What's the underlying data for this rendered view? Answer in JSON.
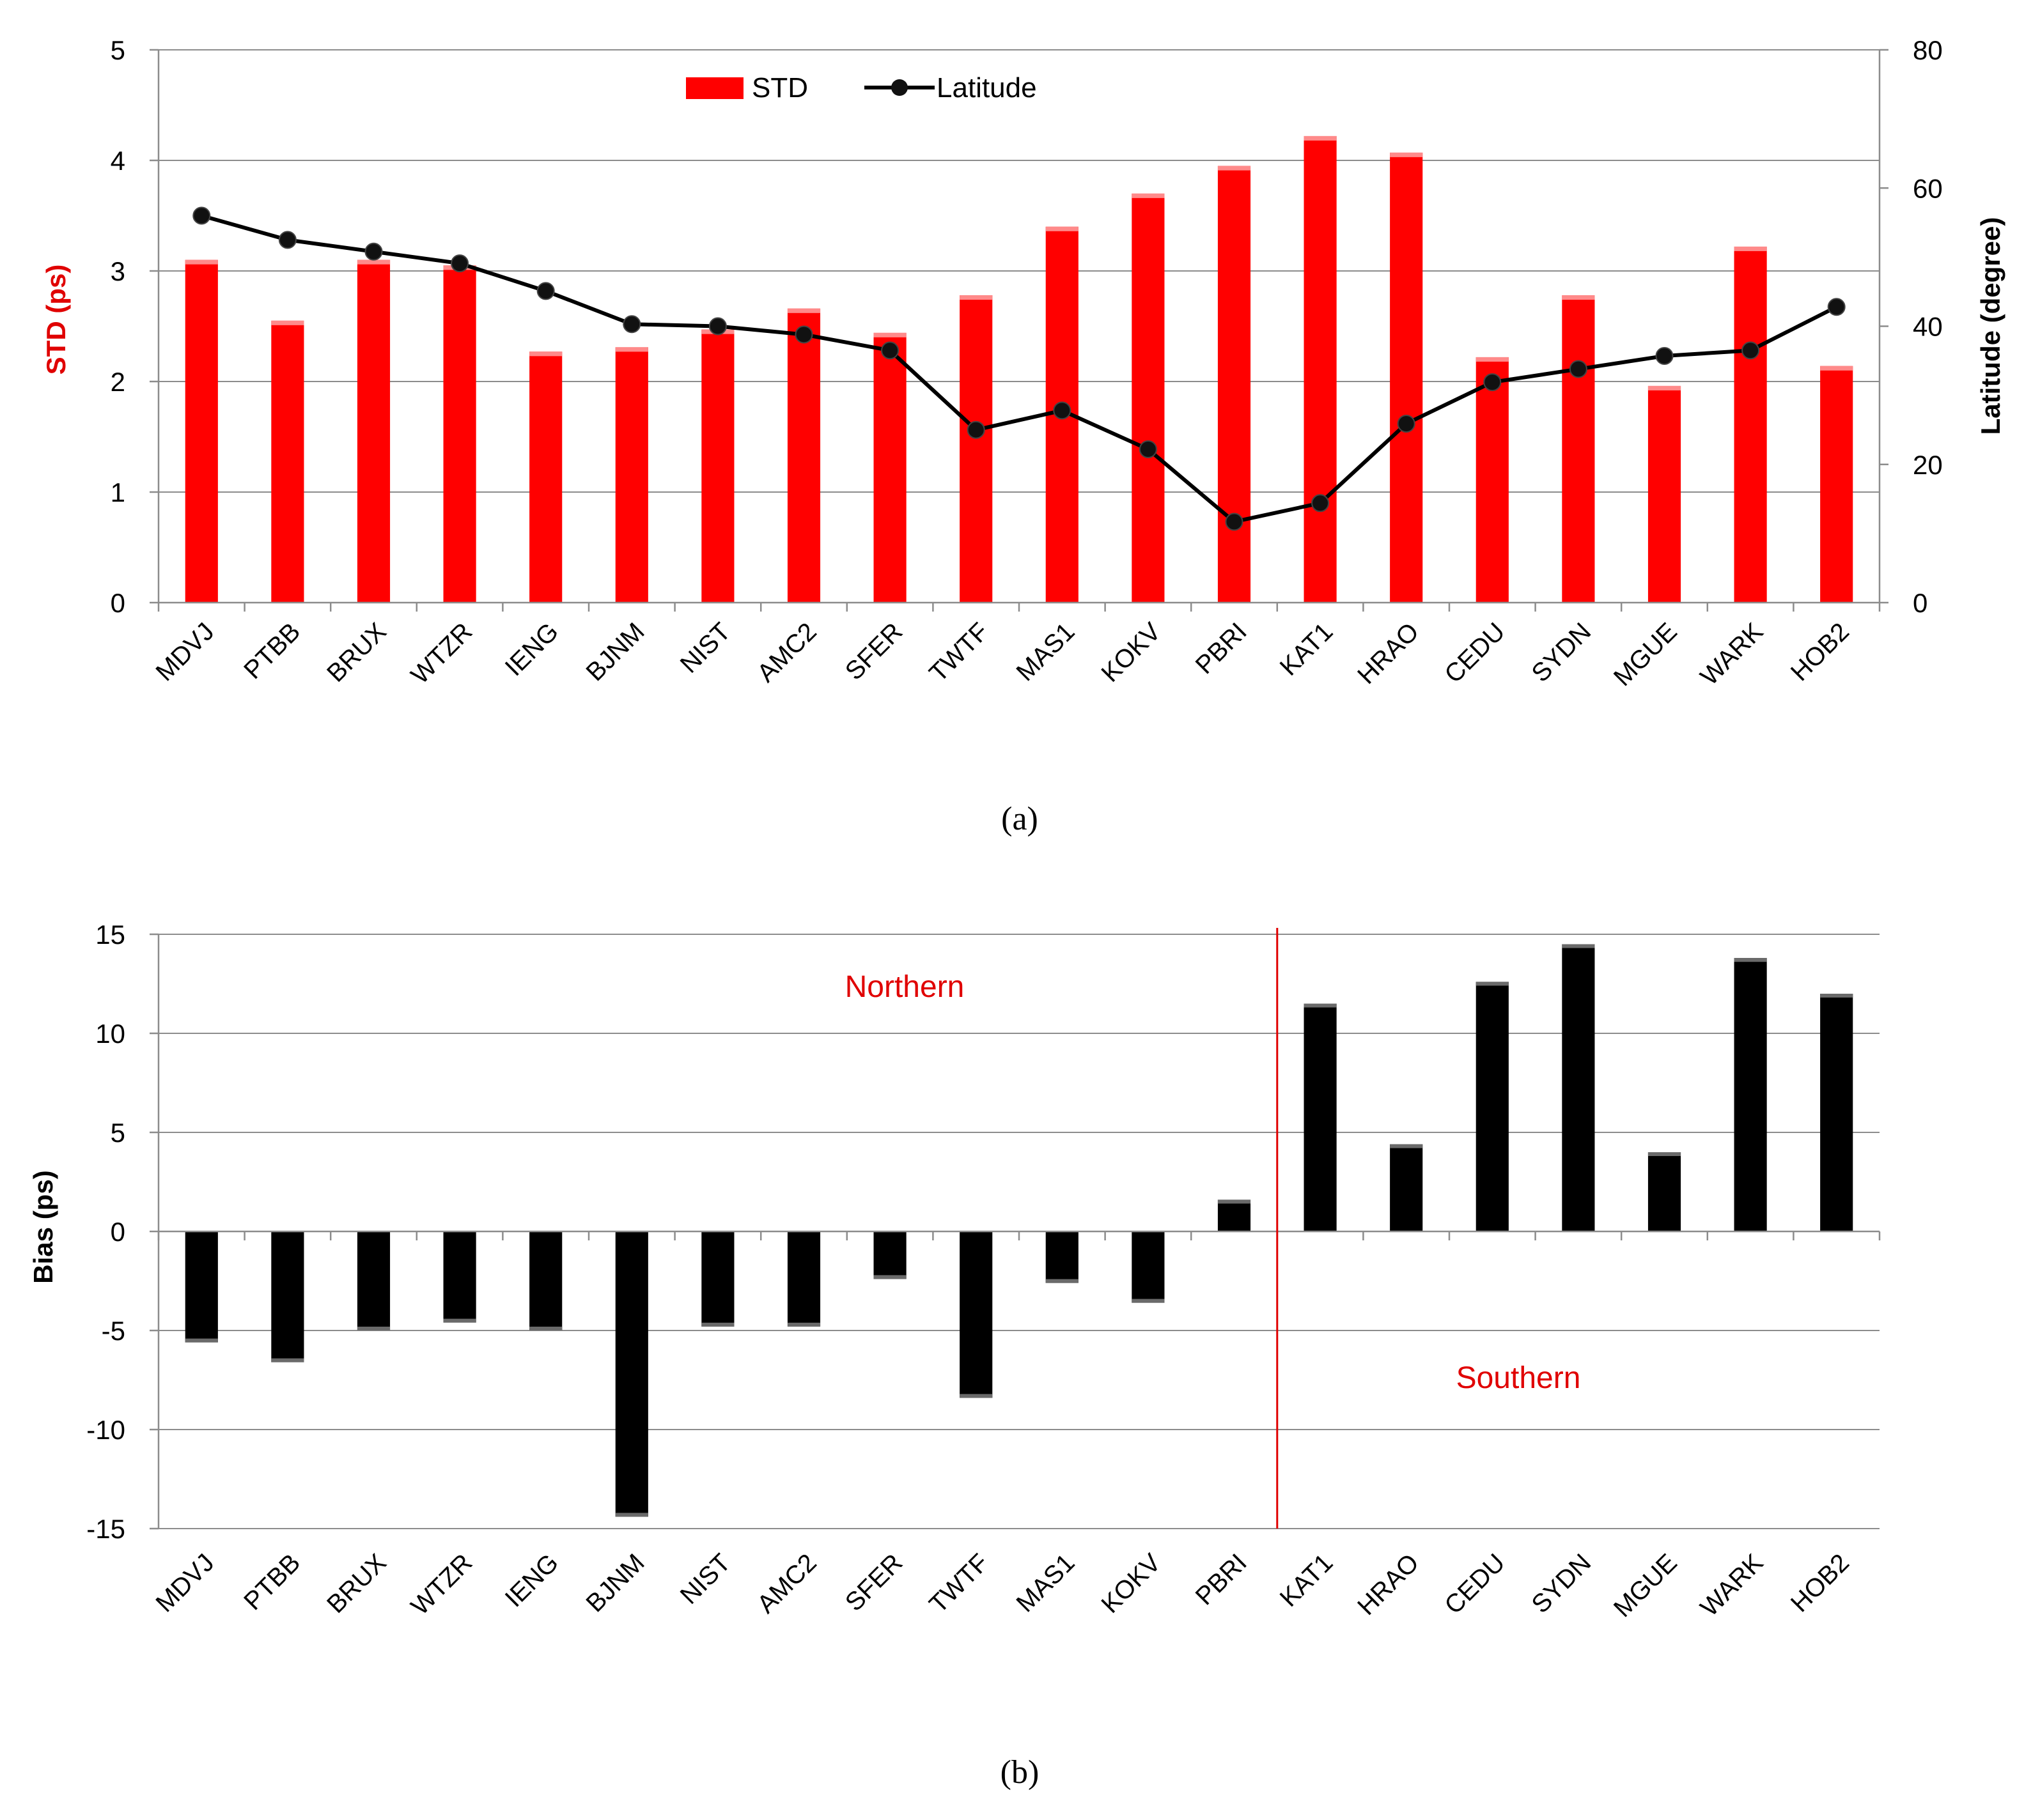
{
  "chart_data": [
    {
      "type": "bar",
      "panel_label": "(a)",
      "categories": [
        "MDVJ",
        "PTBB",
        "BRUX",
        "WTZR",
        "IENG",
        "BJNM",
        "NIST",
        "AMC2",
        "SFER",
        "TWTF",
        "MAS1",
        "KOKV",
        "PBRI",
        "KAT1",
        "HRAO",
        "CEDU",
        "SYDN",
        "MGUE",
        "WARK",
        "HOB2"
      ],
      "series": [
        {
          "name": "STD",
          "type": "bar",
          "axis": "left",
          "color": "#ff0000",
          "values": [
            3.1,
            2.55,
            3.1,
            3.05,
            2.27,
            2.31,
            2.47,
            2.66,
            2.44,
            2.78,
            3.4,
            3.7,
            3.95,
            4.22,
            4.07,
            2.22,
            2.78,
            1.96,
            3.22,
            2.14
          ]
        },
        {
          "name": "Latitude",
          "type": "line",
          "axis": "right",
          "color": "#000000",
          "values": [
            56,
            52.5,
            50.8,
            49.1,
            45.1,
            40.3,
            40.0,
            38.8,
            36.5,
            25.0,
            27.8,
            22.2,
            11.7,
            14.4,
            25.9,
            31.9,
            33.8,
            35.7,
            36.5,
            42.8
          ]
        }
      ],
      "ylabel_left": "STD  (ps)",
      "ylabel_right": "Latitude (degree)",
      "ylim_left": [
        0,
        5
      ],
      "ylim_right": [
        0,
        80
      ],
      "yticks_left": [
        0,
        1,
        2,
        3,
        4,
        5
      ],
      "yticks_right": [
        0,
        20,
        40,
        60,
        80
      ],
      "legend": "top-center",
      "grid": true,
      "colors": {
        "ylabel_left": "#e00000",
        "ylabel_right": "#000000"
      }
    },
    {
      "type": "bar",
      "panel_label": "(b)",
      "categories": [
        "MDVJ",
        "PTBB",
        "BRUX",
        "WTZR",
        "IENG",
        "BJNM",
        "NIST",
        "AMC2",
        "SFER",
        "TWTF",
        "MAS1",
        "KOKV",
        "PBRI",
        "KAT1",
        "HRAO",
        "CEDU",
        "SYDN",
        "MGUE",
        "WARK",
        "HOB2"
      ],
      "series": [
        {
          "name": "Bias",
          "color": "#000000",
          "values": [
            -5.6,
            -6.6,
            -5.0,
            -4.6,
            -5.0,
            -14.4,
            -4.8,
            -4.8,
            -2.4,
            -8.4,
            -2.6,
            -3.6,
            1.6,
            11.5,
            4.4,
            12.6,
            14.5,
            4.0,
            13.8,
            12.0
          ]
        }
      ],
      "ylabel": "Bias  (ps)",
      "ylim": [
        -15,
        15
      ],
      "yticks": [
        -15,
        -10,
        -5,
        0,
        5,
        10,
        15
      ],
      "grid": true,
      "divider_after_category": "PBRI",
      "region_labels": {
        "left": "Northern",
        "right": "Southern"
      }
    }
  ]
}
